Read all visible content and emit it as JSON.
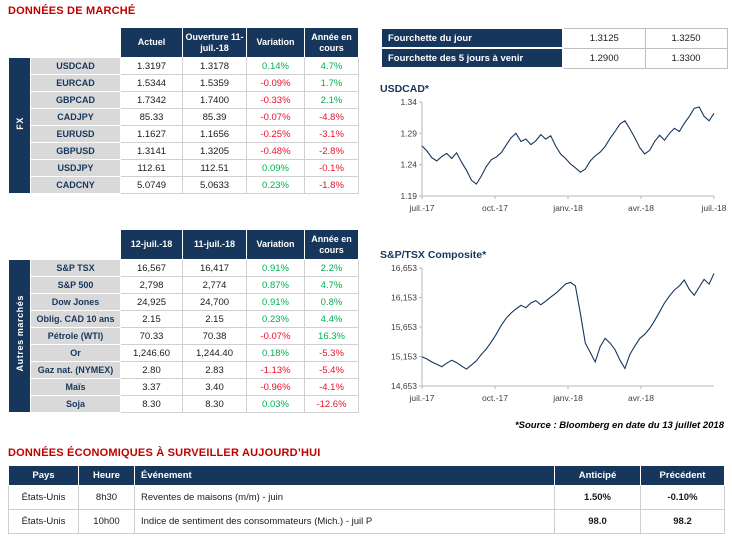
{
  "titles": {
    "market": "DONNÉES DE MARCHÉ",
    "economic": "DONNÉES ÉCONOMIQUES À SURVEILLER AUJOURD’HUI",
    "source_note": "*Source : Bloomberg en date du  13 juillet 2018"
  },
  "colors": {
    "navy": "#16365c",
    "title_red": "#c00000",
    "positive": "#00b050",
    "negative": "#e8112d",
    "label_bg": "#d9d9d9"
  },
  "fx_table": {
    "side_label": "FX",
    "col_headers": [
      "Actuel",
      "Ouverture 11-juil.-18",
      "Variation",
      "Année en cours"
    ],
    "rows": [
      {
        "label": "USDCAD",
        "v1": "1.3197",
        "v2": "1.3178",
        "variation": "0.14%",
        "ytd": "4.7%"
      },
      {
        "label": "EURCAD",
        "v1": "1.5344",
        "v2": "1.5359",
        "variation": "-0.09%",
        "ytd": "1.7%"
      },
      {
        "label": "GBPCAD",
        "v1": "1.7342",
        "v2": "1.7400",
        "variation": "-0.33%",
        "ytd": "2.1%"
      },
      {
        "label": "CADJPY",
        "v1": "85.33",
        "v2": "85.39",
        "variation": "-0.07%",
        "ytd": "-4.8%"
      },
      {
        "label": "EURUSD",
        "v1": "1.1627",
        "v2": "1.1656",
        "variation": "-0.25%",
        "ytd": "-3.1%"
      },
      {
        "label": "GBPUSD",
        "v1": "1.3141",
        "v2": "1.3205",
        "variation": "-0.48%",
        "ytd": "-2.8%"
      },
      {
        "label": "USDJPY",
        "v1": "112.61",
        "v2": "112.51",
        "variation": "0.09%",
        "ytd": "-0.1%"
      },
      {
        "label": "CADCNY",
        "v1": "5.0749",
        "v2": "5.0633",
        "variation": "0.23%",
        "ytd": "-1.8%"
      }
    ]
  },
  "markets_table": {
    "side_label": "Autres marchés",
    "col_headers": [
      "12-juil.-18",
      "11-juil.-18",
      "Variation",
      "Année en cours"
    ],
    "rows": [
      {
        "label": "S&P TSX",
        "v1": "16,567",
        "v2": "16,417",
        "variation": "0.91%",
        "ytd": "2.2%"
      },
      {
        "label": "S&P 500",
        "v1": "2,798",
        "v2": "2,774",
        "variation": "0.87%",
        "ytd": "4.7%"
      },
      {
        "label": "Dow Jones",
        "v1": "24,925",
        "v2": "24,700",
        "variation": "0.91%",
        "ytd": "0.8%"
      },
      {
        "label": "Oblig. CAD 10 ans",
        "v1": "2.15",
        "v2": "2.15",
        "variation": "0.23%",
        "ytd": "4.4%"
      },
      {
        "label": "Pétrole (WTI)",
        "v1": "70.33",
        "v2": "70.38",
        "variation": "-0.07%",
        "ytd": "16.3%"
      },
      {
        "label": "Or",
        "v1": "1,246.60",
        "v2": "1,244.40",
        "variation": "0.18%",
        "ytd": "-5.3%"
      },
      {
        "label": "Gaz nat. (NYMEX)",
        "v1": "2.80",
        "v2": "2.83",
        "variation": "-1.13%",
        "ytd": "-5.4%"
      },
      {
        "label": "Maïs",
        "v1": "3.37",
        "v2": "3.40",
        "variation": "-0.96%",
        "ytd": "-4.1%"
      },
      {
        "label": "Soja",
        "v1": "8.30",
        "v2": "8.30",
        "variation": "0.03%",
        "ytd": "-12.6%"
      }
    ]
  },
  "range_table": {
    "rows": [
      {
        "label": "Fourchette du jour",
        "low": "1.3125",
        "high": "1.3250"
      },
      {
        "label": "Fourchette des 5 jours à venir",
        "low": "1.2900",
        "high": "1.3300"
      }
    ]
  },
  "econ_table": {
    "headers": [
      "Pays",
      "Heure",
      "Événement",
      "Anticipé",
      "Précédent"
    ],
    "rows": [
      {
        "pays": "États-Unis",
        "heure": "8h30",
        "evenement": "Reventes de maisons (m/m) - juin",
        "anticipe": "1.50%",
        "precedent": "-0.10%"
      },
      {
        "pays": "États-Unis",
        "heure": "10h00",
        "evenement": "Indice de sentiment des consommateurs (Mich.) - juil P",
        "anticipe": "98.0",
        "precedent": "98.2"
      }
    ]
  },
  "chart_data": [
    {
      "type": "line",
      "title": "USDCAD*",
      "xlabel": "",
      "ylabel": "",
      "grid": false,
      "legend": "none",
      "ylim": [
        1.19,
        1.34
      ],
      "yticks": [
        "1.34",
        "1.29",
        "1.24",
        "1.19"
      ],
      "xticks": [
        "juil.-17",
        "oct.-17",
        "janv.-18",
        "avr.-18",
        "juil.-18"
      ],
      "values": [
        1.27,
        1.262,
        1.251,
        1.246,
        1.253,
        1.258,
        1.25,
        1.259,
        1.244,
        1.231,
        1.215,
        1.209,
        1.222,
        1.237,
        1.248,
        1.252,
        1.259,
        1.271,
        1.283,
        1.29,
        1.277,
        1.281,
        1.272,
        1.278,
        1.288,
        1.281,
        1.286,
        1.27,
        1.257,
        1.25,
        1.241,
        1.235,
        1.228,
        1.233,
        1.246,
        1.254,
        1.26,
        1.269,
        1.282,
        1.293,
        1.305,
        1.31,
        1.297,
        1.283,
        1.267,
        1.257,
        1.263,
        1.277,
        1.287,
        1.279,
        1.29,
        1.298,
        1.293,
        1.306,
        1.317,
        1.33,
        1.332,
        1.317,
        1.31,
        1.322
      ]
    },
    {
      "type": "line",
      "title": "S&P/TSX Composite*",
      "xlabel": "",
      "ylabel": "",
      "grid": false,
      "legend": "none",
      "ylim": [
        14653,
        16653
      ],
      "yticks": [
        "16,653",
        "16,153",
        "15,653",
        "15,153",
        "14,653"
      ],
      "xticks": [
        "juil.-17",
        "oct.-17",
        "janv.-18",
        "avr.-18"
      ],
      "values": [
        15150,
        15110,
        15060,
        15020,
        14980,
        15040,
        15090,
        15050,
        14990,
        14940,
        15010,
        15080,
        15190,
        15280,
        15400,
        15530,
        15680,
        15800,
        15890,
        15960,
        16020,
        15980,
        16060,
        16100,
        16030,
        16090,
        16160,
        16220,
        16300,
        16380,
        16410,
        16350,
        15880,
        15380,
        15220,
        15060,
        15320,
        15460,
        15380,
        15270,
        15090,
        14950,
        15190,
        15330,
        15460,
        15530,
        15630,
        15760,
        15910,
        16060,
        16180,
        16280,
        16350,
        16450,
        16290,
        16190,
        16330,
        16460,
        16380,
        16560
      ]
    }
  ]
}
